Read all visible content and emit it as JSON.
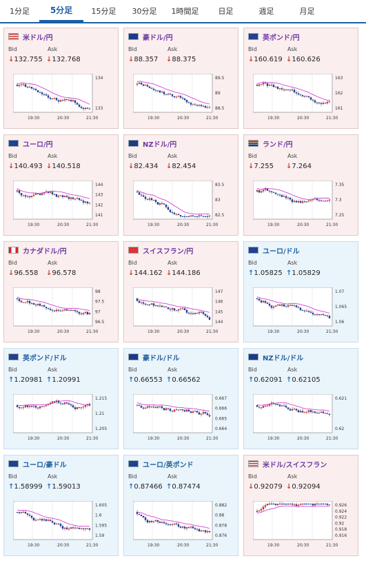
{
  "tabs": [
    {
      "label": "1分足"
    },
    {
      "label": "5分足"
    },
    {
      "label": "15分足"
    },
    {
      "label": "30分足"
    },
    {
      "label": "1時間足"
    },
    {
      "label": "日足"
    },
    {
      "label": "週足"
    },
    {
      "label": "月足"
    }
  ],
  "active_tab": 1,
  "labels": {
    "bid": "Bid",
    "ask": "Ask"
  },
  "colors": {
    "down": "#d23b2f",
    "up": "#1e72c8",
    "ma": "#d63fd6",
    "candle_up": "#d2262b",
    "candle_down": "#1b3d9c"
  },
  "x_ticks": [
    "19:30",
    "20:30",
    "21:30"
  ],
  "pairs": [
    {
      "name": "米ドル/円",
      "flag": "us-flag-icon",
      "dir": "down",
      "bid": "132.755",
      "ask": "132.768",
      "y_ticks": [
        "134",
        "133"
      ]
    },
    {
      "name": "豪ドル/円",
      "flag": "au-flag-icon",
      "dir": "down",
      "bid": "88.357",
      "ask": "88.375",
      "y_ticks": [
        "89.5",
        "89",
        "88.5"
      ]
    },
    {
      "name": "英ポンド/円",
      "flag": "gb-flag-icon",
      "dir": "down",
      "bid": "160.619",
      "ask": "160.626",
      "y_ticks": [
        "163",
        "162",
        "161"
      ]
    },
    {
      "name": "ユーロ/円",
      "flag": "eu-flag-icon",
      "dir": "down",
      "bid": "140.493",
      "ask": "140.518",
      "y_ticks": [
        "144",
        "143",
        "142",
        "141"
      ]
    },
    {
      "name": "NZドル/円",
      "flag": "nz-flag-icon",
      "dir": "down",
      "bid": "82.434",
      "ask": "82.454",
      "y_ticks": [
        "83.5",
        "83",
        "82.5"
      ]
    },
    {
      "name": "ランド/円",
      "flag": "za-flag-icon",
      "dir": "down",
      "bid": "7.255",
      "ask": "7.264",
      "y_ticks": [
        "7.35",
        "7.3",
        "7.25"
      ]
    },
    {
      "name": "カナダドル/円",
      "flag": "ca-flag-icon",
      "dir": "down",
      "bid": "96.558",
      "ask": "96.578",
      "y_ticks": [
        "98",
        "97.5",
        "97",
        "96.5"
      ]
    },
    {
      "name": "スイスフラン/円",
      "flag": "ch-flag-icon",
      "dir": "down",
      "bid": "144.162",
      "ask": "144.186",
      "y_ticks": [
        "147",
        "146",
        "145",
        "144"
      ]
    },
    {
      "name": "ユーロ/ドル",
      "flag": "eu-us-flag-icon",
      "dir": "up",
      "bid": "1.05825",
      "ask": "1.05829",
      "y_ticks": [
        "1.07",
        "1.065",
        "1.06"
      ]
    },
    {
      "name": "英ポンド/ドル",
      "flag": "gb-us-flag-icon",
      "dir": "up",
      "bid": "1.20981",
      "ask": "1.20991",
      "y_ticks": [
        "1.215",
        "1.21",
        "1.205"
      ]
    },
    {
      "name": "豪ドル/ドル",
      "flag": "au-us-flag-icon",
      "dir": "up",
      "bid": "0.66553",
      "ask": "0.66562",
      "y_ticks": [
        "0.667",
        "0.666",
        "0.665",
        "0.664"
      ]
    },
    {
      "name": "NZドル/ドル",
      "flag": "nz-us-flag-icon",
      "dir": "up",
      "bid": "0.62091",
      "ask": "0.62105",
      "y_ticks": [
        "0.621",
        "0.62"
      ]
    },
    {
      "name": "ユーロ/豪ドル",
      "flag": "eu-au-flag-icon",
      "dir": "up",
      "bid": "1.58999",
      "ask": "1.59013",
      "y_ticks": [
        "1.605",
        "1.6",
        "1.595",
        "1.59"
      ]
    },
    {
      "name": "ユーロ/英ポンド",
      "flag": "eu-gb-flag-icon",
      "dir": "up",
      "bid": "0.87466",
      "ask": "0.87474",
      "y_ticks": [
        "0.882",
        "0.88",
        "0.878",
        "0.876"
      ]
    },
    {
      "name": "米ドル/スイスフラン",
      "flag": "us-ch-flag-icon",
      "dir": "down",
      "bid": "0.92079",
      "ask": "0.92094",
      "y_ticks": [
        "0.926",
        "0.924",
        "0.922",
        "0.92",
        "0.918",
        "0.916"
      ]
    }
  ]
}
